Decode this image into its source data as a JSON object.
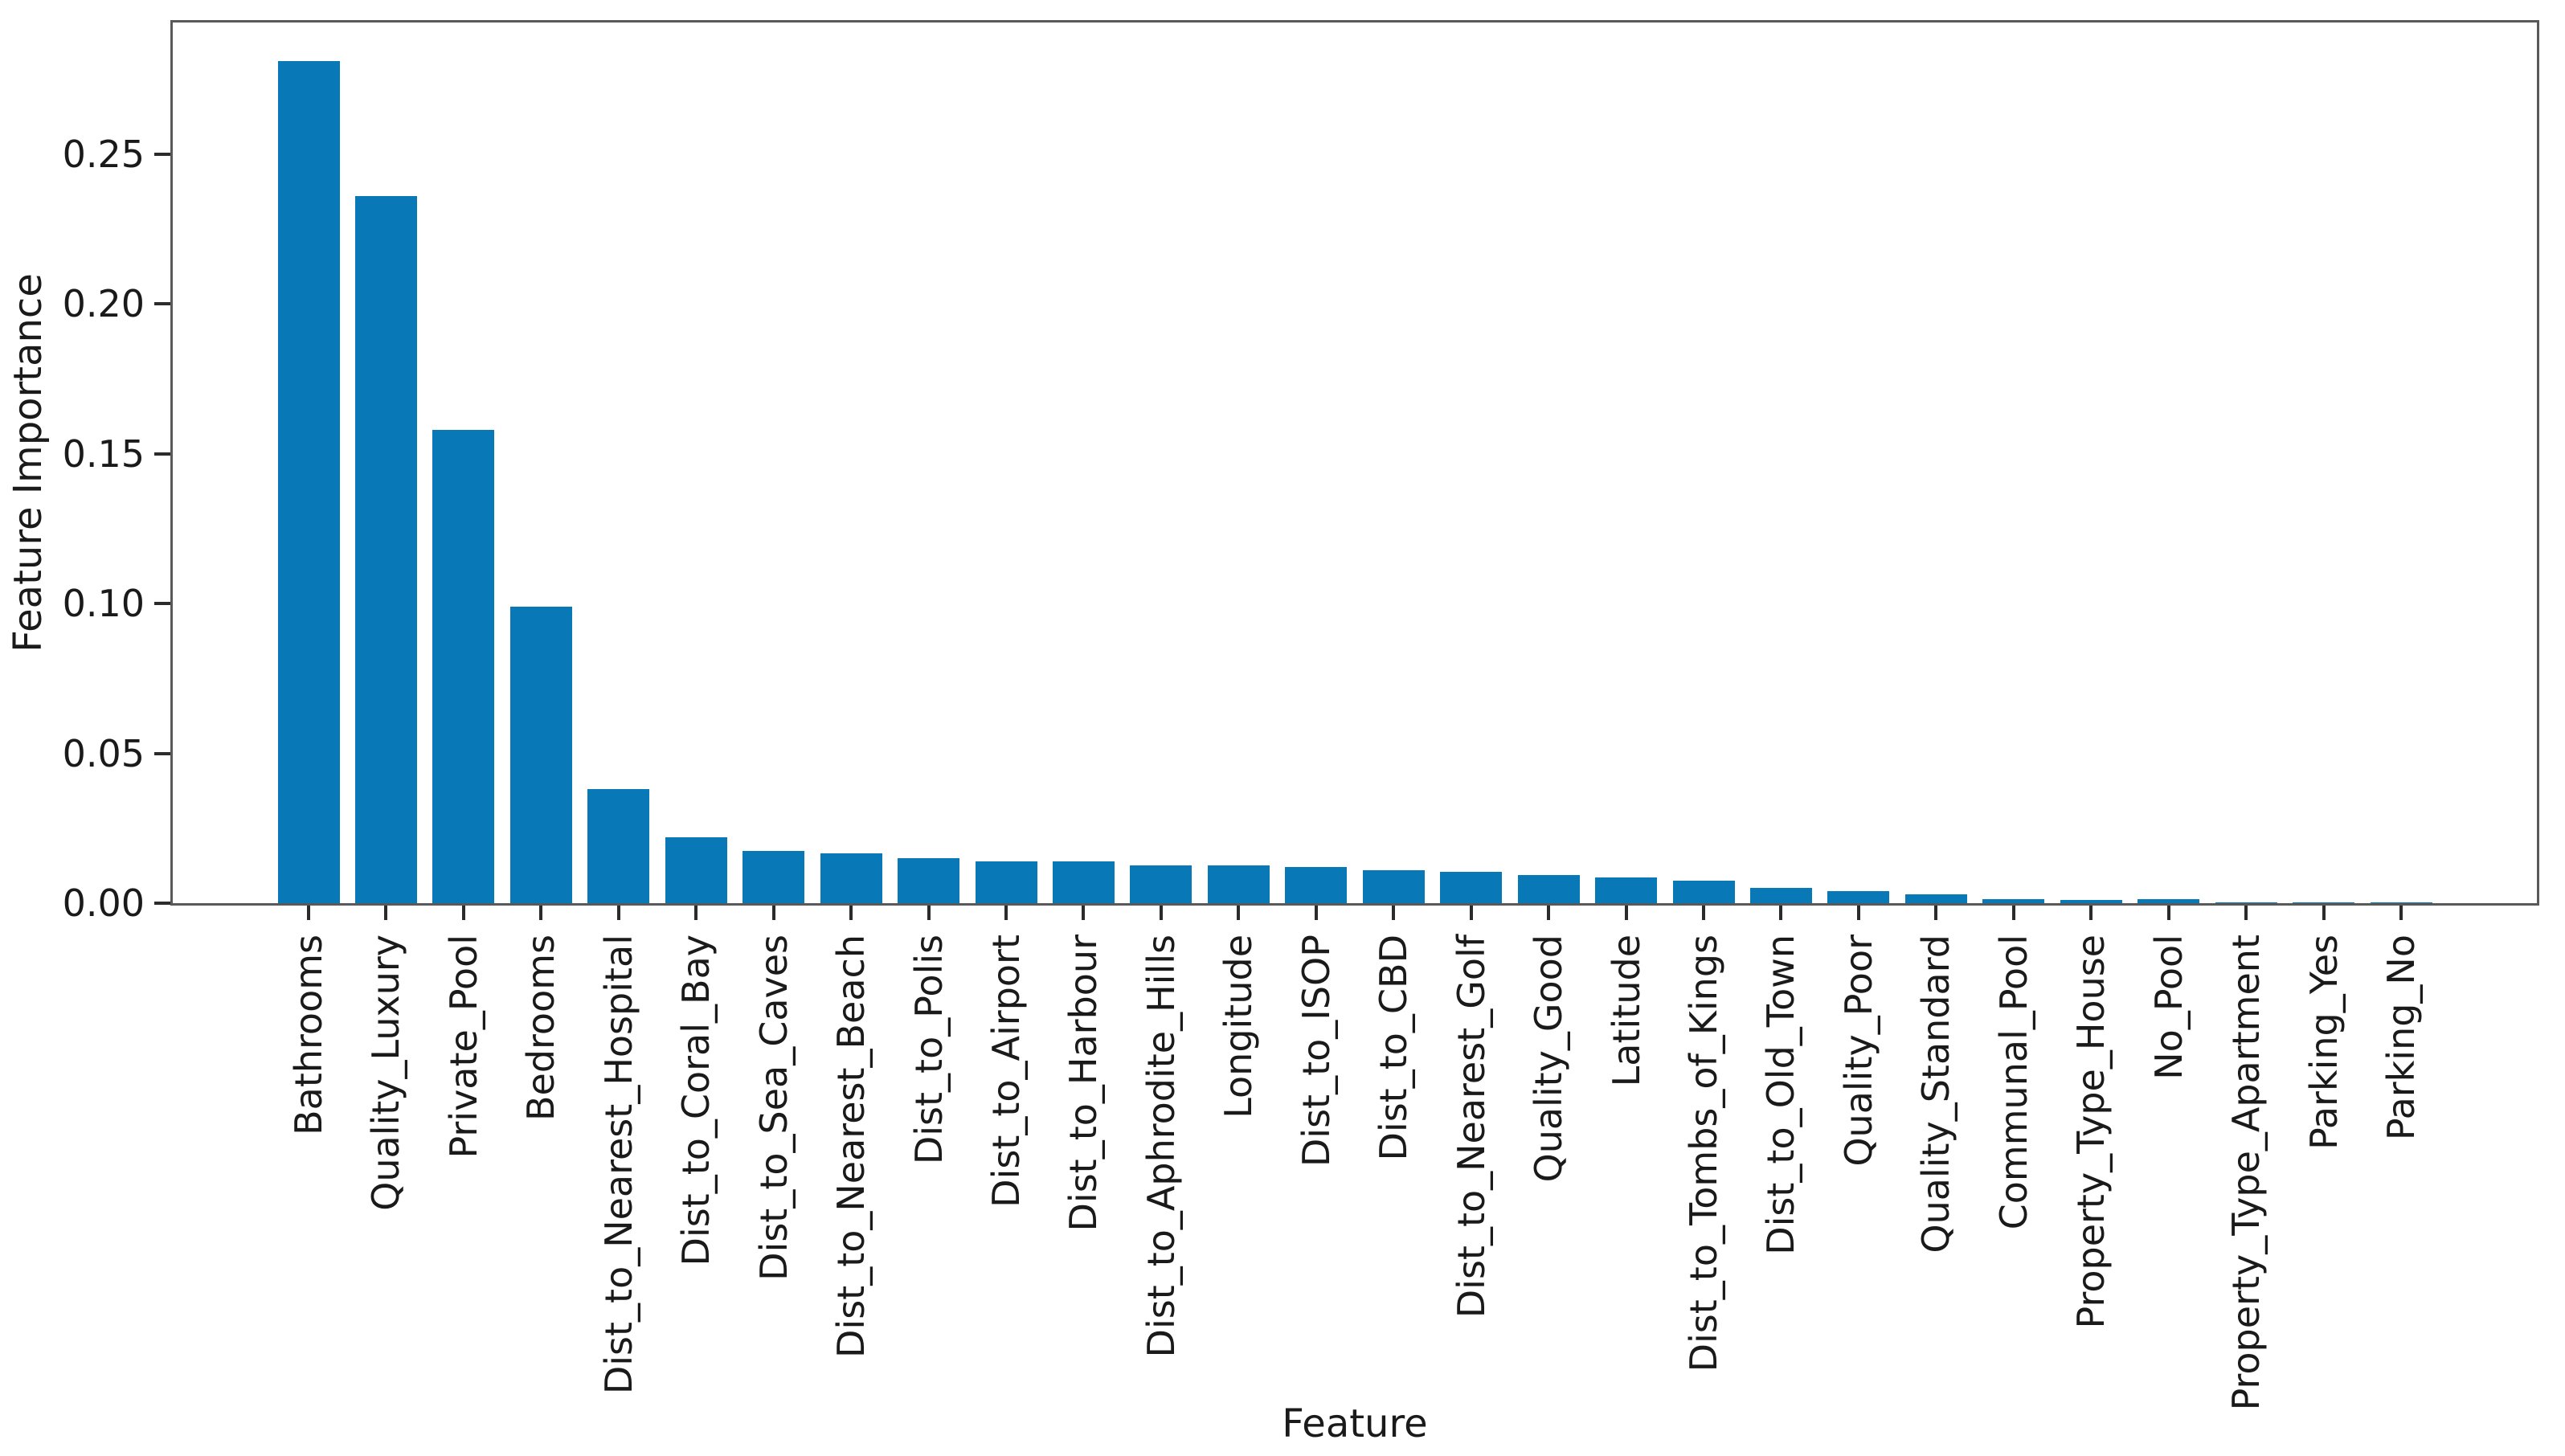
{
  "chart_data": {
    "type": "bar",
    "title": "",
    "xlabel": "Feature",
    "ylabel": "Feature Importance",
    "categories": [
      "Bathrooms",
      "Quality_Luxury",
      "Private_Pool",
      "Bedrooms",
      "Dist_to_Nearest_Hospital",
      "Dist_to_Coral_Bay",
      "Dist_to_Sea_Caves",
      "Dist_to_Nearest_Beach",
      "Dist_to_Polis",
      "Dist_to_Airport",
      "Dist_to_Harbour",
      "Dist_to_Aphrodite_Hills",
      "Longitude",
      "Dist_to_ISOP",
      "Dist_to_CBD",
      "Dist_to_Nearest_Golf",
      "Quality_Good",
      "Latitude",
      "Dist_to_Tombs_of_Kings",
      "Dist_to_Old_Town",
      "Quality_Poor",
      "Quality_Standard",
      "Communal_Pool",
      "Property_Type_House",
      "No_Pool",
      "Property_Type_Apartment",
      "Parking_Yes",
      "Parking_No"
    ],
    "values": [
      0.281,
      0.236,
      0.158,
      0.099,
      0.038,
      0.022,
      0.0175,
      0.0165,
      0.015,
      0.014,
      0.014,
      0.0125,
      0.0125,
      0.012,
      0.011,
      0.0105,
      0.0095,
      0.0085,
      0.0075,
      0.005,
      0.004,
      0.003,
      0.0013,
      0.0012,
      0.0013,
      0.0003,
      0.0002,
      0.0002
    ],
    "ytick_labels": [
      "0.00",
      "0.05",
      "0.10",
      "0.15",
      "0.20",
      "0.25"
    ],
    "ytick_values": [
      0.0,
      0.05,
      0.1,
      0.15,
      0.2,
      0.25
    ],
    "ylim": [
      0,
      0.294
    ],
    "grid": false,
    "legend": null,
    "colors": {
      "bar": "#0878b6",
      "spine": "#58595b",
      "tick": "#2b2b2b",
      "text": "#1a1a1a",
      "background": "#ffffff"
    }
  }
}
